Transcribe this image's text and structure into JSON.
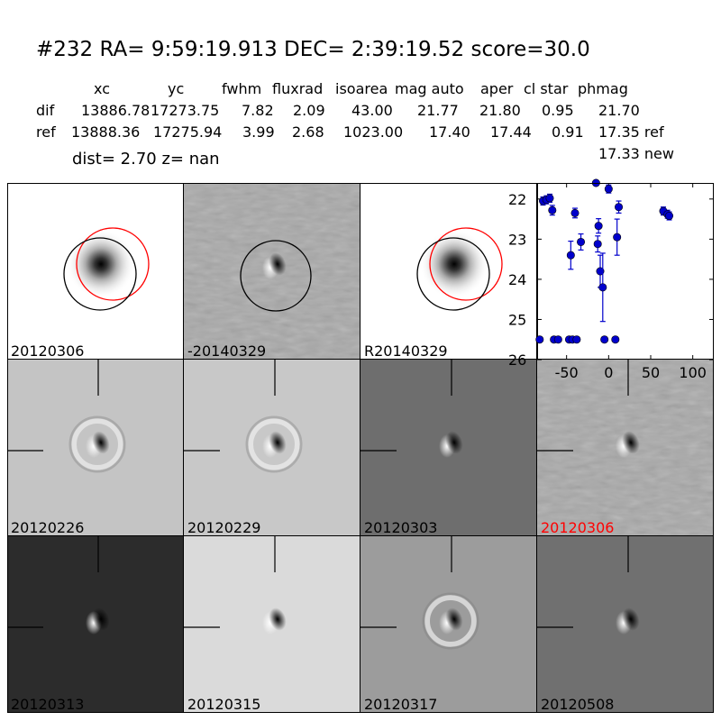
{
  "header": {
    "title": "#232   RA= 9:59:19.913 DEC= 2:39:19.52       score=30.0",
    "columns": [
      "xc",
      "yc",
      "fwhm",
      "fluxrad",
      "isoarea",
      "mag auto",
      "aper",
      "cl star",
      "phmag"
    ],
    "rows": [
      {
        "label": "dif",
        "values": [
          "13886.78",
          "17273.75",
          "7.82",
          "2.09",
          "43.00",
          "21.77",
          "21.80",
          "0.95",
          "21.70"
        ]
      },
      {
        "label": "ref",
        "values": [
          "13888.36",
          "17275.94",
          "3.99",
          "2.68",
          "1023.00",
          "17.40",
          "17.44",
          "0.91",
          "17.35 ref"
        ]
      }
    ],
    "extra_phmag": "17.33 new",
    "dist_line": "dist=  2.70       z=   nan"
  },
  "panels": [
    {
      "label": "20120306",
      "style": "gauss",
      "bg": "#ffffff"
    },
    {
      "label": "-20140329",
      "style": "noise",
      "bg": "#a8a8a8"
    },
    {
      "label": "R20140329",
      "style": "gauss",
      "bg": "#ffffff"
    },
    {
      "label": "20120226",
      "style": "dipole",
      "bg": "#c4c4c4"
    },
    {
      "label": "20120229",
      "style": "dipole",
      "bg": "#c8c8c8"
    },
    {
      "label": "20120303",
      "style": "dipole",
      "bg": "#6e6e6e"
    },
    {
      "label": "20120306",
      "style": "dipole-noise",
      "bg": "#a8a8a8",
      "label_color": "#ff0000"
    },
    {
      "label": "20120313",
      "style": "dipole",
      "bg": "#2c2c2c"
    },
    {
      "label": "20120315",
      "style": "dipole",
      "bg": "#dadada"
    },
    {
      "label": "20120317",
      "style": "dipole",
      "bg": "#9c9c9c"
    },
    {
      "label": "20120508",
      "style": "dipole",
      "bg": "#707070"
    }
  ],
  "chart_data": {
    "type": "scatter",
    "xlim": [
      -85,
      125
    ],
    "ylim": [
      26,
      21.6
    ],
    "y_inverted": true,
    "x_ticks": [
      -50,
      0,
      50,
      100
    ],
    "y_ticks": [
      22,
      23,
      24,
      25,
      26
    ],
    "marker_color": "#0000cc",
    "points": [
      {
        "x": -78,
        "y": 22.05,
        "err": 0.1
      },
      {
        "x": -74,
        "y": 22.02,
        "err": 0.1
      },
      {
        "x": -70,
        "y": 21.98,
        "err": 0.1
      },
      {
        "x": -67,
        "y": 22.28,
        "err": 0.12
      },
      {
        "x": -45,
        "y": 23.4,
        "err": 0.35
      },
      {
        "x": -40,
        "y": 22.35,
        "err": 0.12
      },
      {
        "x": -33,
        "y": 23.07,
        "err": 0.2
      },
      {
        "x": -15,
        "y": 21.6,
        "err": 0.05
      },
      {
        "x": -13,
        "y": 23.12,
        "err": 0.2
      },
      {
        "x": -12,
        "y": 22.67,
        "err": 0.18
      },
      {
        "x": -10,
        "y": 23.8,
        "err": 0.4
      },
      {
        "x": -7,
        "y": 24.2,
        "err": 0.85
      },
      {
        "x": 0,
        "y": 21.75,
        "err": 0.1
      },
      {
        "x": 10,
        "y": 22.95,
        "err": 0.45
      },
      {
        "x": 12,
        "y": 22.2,
        "err": 0.15
      },
      {
        "x": 65,
        "y": 22.3,
        "err": 0.1
      },
      {
        "x": 70,
        "y": 22.38,
        "err": 0.1
      },
      {
        "x": 72,
        "y": 22.42,
        "err": 0.1
      },
      {
        "x": -82,
        "y": 25.5,
        "err": 0
      },
      {
        "x": -65,
        "y": 25.5,
        "err": 0
      },
      {
        "x": -60,
        "y": 25.5,
        "err": 0
      },
      {
        "x": -47,
        "y": 25.5,
        "err": 0
      },
      {
        "x": -43,
        "y": 25.5,
        "err": 0
      },
      {
        "x": -38,
        "y": 25.5,
        "err": 0
      },
      {
        "x": -5,
        "y": 25.5,
        "err": 0
      },
      {
        "x": 8,
        "y": 25.5,
        "err": 0
      }
    ]
  }
}
